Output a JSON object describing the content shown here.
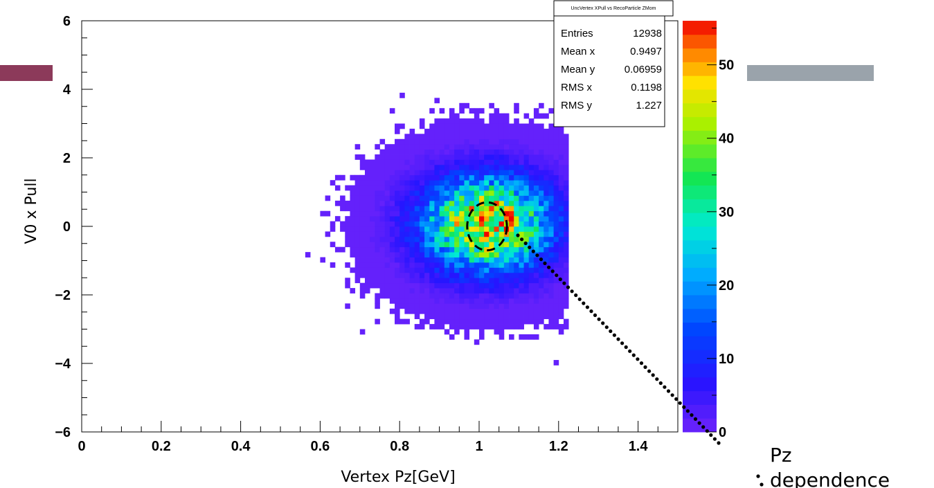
{
  "chart_data": {
    "type": "heatmap",
    "title": "UncVertex XPull vs RecoParticle ZMom",
    "xlabel": "Vertex Pz[GeV]",
    "ylabel": "V0 x Pull",
    "xlim": [
      0,
      1.5
    ],
    "ylim": [
      -6,
      6
    ],
    "x_ticks": [
      "0",
      "0.2",
      "0.4",
      "0.6",
      "0.8",
      "1",
      "1.2",
      "1.4"
    ],
    "y_ticks": [
      "6",
      "4",
      "2",
      "0",
      "−2",
      "−4",
      "−6"
    ],
    "color_scale": {
      "min": 0,
      "max": 56,
      "ticks": [
        "0",
        "10",
        "20",
        "30",
        "40",
        "50"
      ]
    },
    "stats": [
      {
        "label": "Entries",
        "value": "12938"
      },
      {
        "label": "Mean x",
        "value": "0.9497"
      },
      {
        "label": "Mean y",
        "value": "0.06959"
      },
      {
        "label": "RMS x",
        "value": "0.1198"
      },
      {
        "label": "RMS y",
        "value": "1.227"
      }
    ],
    "distribution": {
      "mean_x": 0.9497,
      "mean_y": 0.06959,
      "rms_x": 0.1198,
      "rms_y": 1.227,
      "entries": 12938,
      "peak": 55,
      "bin_x": 0.0125,
      "bin_y": 0.15
    },
    "highlight": {
      "center": [
        1.02,
        0
      ],
      "radius_x": 0.05,
      "radius_y": 0.7
    }
  },
  "annotation": {
    "line1": "Pz",
    "line2": "dependence"
  },
  "colors": {
    "deco_left": "#8c3a5a",
    "deco_right": "#9aa3ab"
  }
}
